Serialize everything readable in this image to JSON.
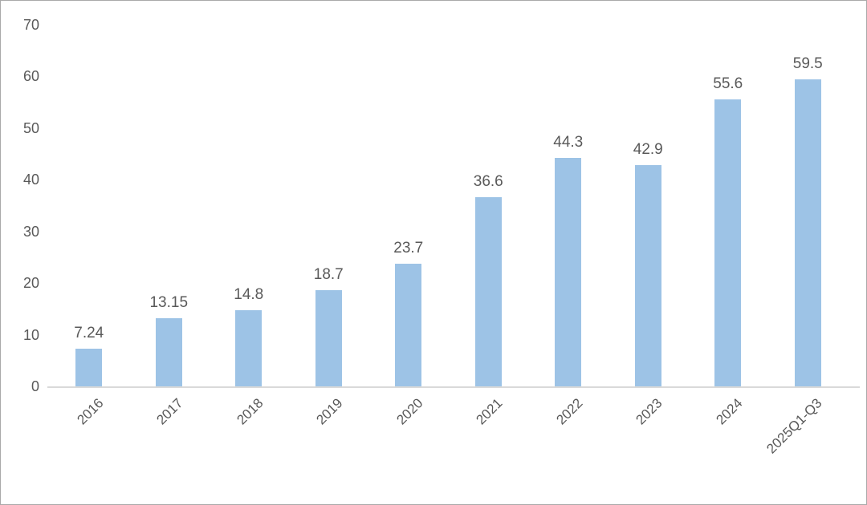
{
  "chart_data": {
    "type": "bar",
    "title": "",
    "xlabel": "",
    "ylabel": "",
    "categories": [
      "2016",
      "2017",
      "2018",
      "2019",
      "2020",
      "2021",
      "2022",
      "2023",
      "2024",
      "2025Q1-Q3"
    ],
    "values": [
      7.24,
      13.15,
      14.8,
      18.7,
      23.7,
      36.6,
      44.3,
      42.9,
      55.6,
      59.5
    ],
    "value_labels": [
      "7.24",
      "13.15",
      "14.8",
      "18.7",
      "23.7",
      "36.6",
      "44.3",
      "42.9",
      "55.6",
      "59.5"
    ],
    "ylim": [
      0,
      70
    ],
    "yticks": [
      "0",
      "10",
      "20",
      "30",
      "40",
      "50",
      "60",
      "70"
    ],
    "grid": false,
    "legend_position": "none",
    "data_labels_shown": true,
    "x_label_rotation_deg": 45,
    "colors": {
      "bar": "#9dc3e6",
      "text": "#595959",
      "axis_line": "#d9d9d9",
      "page_border": "#a9a9a9",
      "background": "#ffffff"
    }
  }
}
